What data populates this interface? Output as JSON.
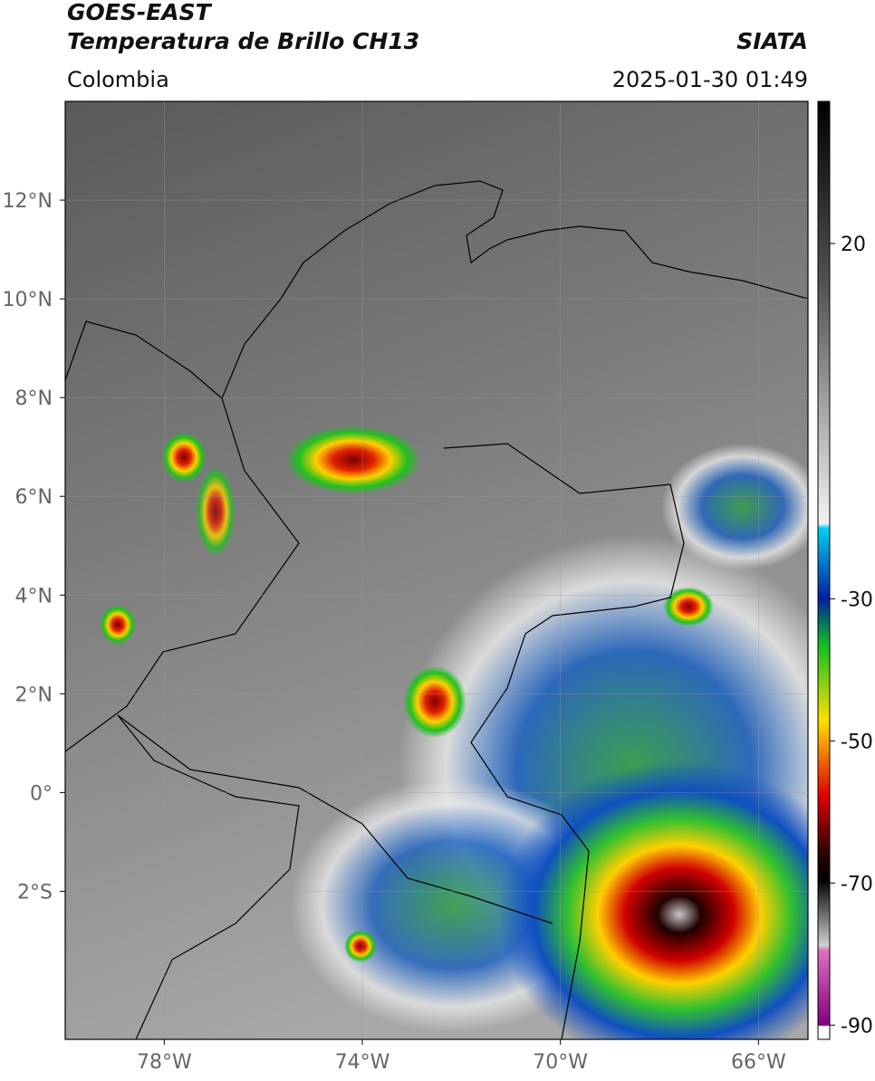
{
  "header": {
    "title_line1": "GOES-EAST",
    "title_line2": "Temperatura de Brillo CH13",
    "source": "SIATA",
    "region": "Colombia",
    "datetime": "2025-01-30 01:49"
  },
  "map": {
    "xlim": [
      -80,
      -65
    ],
    "ylim": [
      -5,
      14
    ],
    "xticks": [
      {
        "value": -78,
        "label": "78°W"
      },
      {
        "value": -74,
        "label": "74°W"
      },
      {
        "value": -70,
        "label": "70°W"
      },
      {
        "value": -66,
        "label": "66°W"
      }
    ],
    "yticks": [
      {
        "value": 12,
        "label": "12°N"
      },
      {
        "value": 10,
        "label": "10°N"
      },
      {
        "value": 8,
        "label": "8°N"
      },
      {
        "value": 6,
        "label": "6°N"
      },
      {
        "value": 4,
        "label": "4°N"
      },
      {
        "value": 2,
        "label": "2°N"
      },
      {
        "value": 0,
        "label": "0°"
      },
      {
        "value": -2,
        "label": "2°S"
      }
    ]
  },
  "colorbar": {
    "lim": [
      -92,
      40
    ],
    "ticks": [
      20,
      -30,
      -50,
      -70,
      -90
    ]
  }
}
